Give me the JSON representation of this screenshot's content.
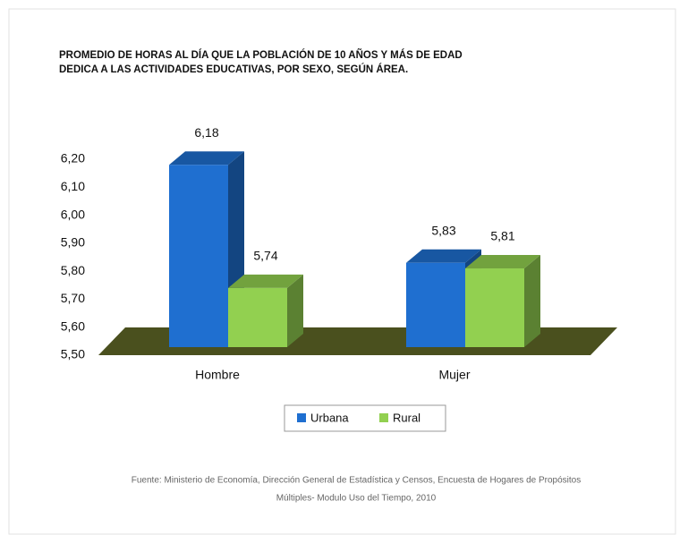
{
  "chart_data": {
    "type": "bar3d",
    "title": [
      "PROMEDIO DE HORAS  AL DÍA  QUE LA POBLACIÓN DE 10 AÑOS Y MÁS DE EDAD",
      "DEDICA A LAS ACTIVIDADES EDUCATIVAS,  POR SEXO,  SEGÚN ÁREA."
    ],
    "categories": [
      "Hombre",
      "Mujer"
    ],
    "series": [
      {
        "name": "Urbana",
        "color": "#1f6fd0",
        "values": [
          6.18,
          5.83
        ],
        "value_labels": [
          "6,18",
          "5,83"
        ]
      },
      {
        "name": "Rural",
        "color": "#92d050",
        "values": [
          5.74,
          5.81
        ],
        "value_labels": [
          "5,74",
          "5,81"
        ]
      }
    ],
    "ylim": [
      5.5,
      6.2
    ],
    "yticks": [
      {
        "value": 5.5,
        "label": "5,50"
      },
      {
        "value": 5.6,
        "label": "5,60"
      },
      {
        "value": 5.7,
        "label": "5,70"
      },
      {
        "value": 5.8,
        "label": "5,80"
      },
      {
        "value": 5.9,
        "label": "5,90"
      },
      {
        "value": 6.0,
        "label": "6,00"
      },
      {
        "value": 6.1,
        "label": "6,10"
      },
      {
        "value": 6.2,
        "label": "6,20"
      }
    ],
    "grid": false,
    "legend": "bottom",
    "source": [
      "Fuente: Ministerio de Economía, Dirección General de Estadística y Censos, Encuesta de Hogares de Propósitos",
      "Múltiples- Modulo Uso del Tiempo, 2010"
    ]
  }
}
